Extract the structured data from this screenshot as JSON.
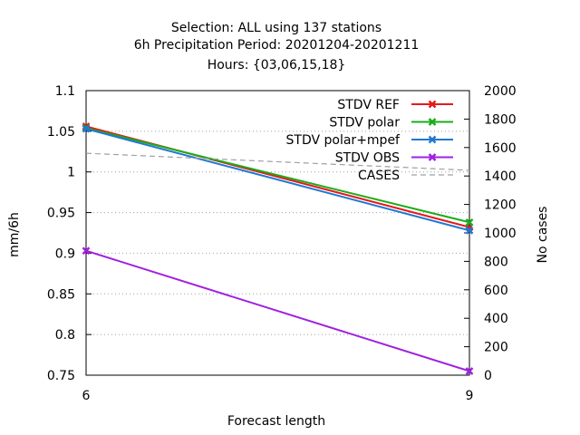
{
  "chart_data": {
    "type": "line",
    "title_lines": [
      "Selection: ALL using   137 stations",
      "6h Precipitation    Period: 20201204-20201211",
      "Hours: {03,06,15,18}"
    ],
    "xlabel": "Forecast length",
    "ylabel": "mm/6h",
    "y2label": "No cases",
    "x": [
      6,
      9
    ],
    "xlim": [
      6,
      9
    ],
    "x_ticks": [
      "6",
      "9"
    ],
    "ylim": [
      0.75,
      1.1
    ],
    "y_ticks": [
      "0.75",
      "0.8",
      "0.85",
      "0.9",
      "0.95",
      "1",
      "1.05",
      "1.1"
    ],
    "y2lim": [
      0,
      2000
    ],
    "y2_ticks": [
      "0",
      "200",
      "400",
      "600",
      "800",
      "1000",
      "1200",
      "1400",
      "1600",
      "1800",
      "2000"
    ],
    "grid": true,
    "legend_position": "top-right",
    "series": [
      {
        "name": "STDV REF",
        "values": [
          1.056,
          0.932
        ],
        "color": "#e41a1c",
        "axis": "left",
        "dashed": false,
        "marker": true
      },
      {
        "name": "STDV polar",
        "values": [
          1.054,
          0.938
        ],
        "color": "#1aad19",
        "axis": "left",
        "dashed": false,
        "marker": true
      },
      {
        "name": "STDV polar+mpef",
        "values": [
          1.053,
          0.928
        ],
        "color": "#1f78d4",
        "axis": "left",
        "dashed": false,
        "marker": true
      },
      {
        "name": "STDV OBS",
        "values": [
          0.903,
          0.755
        ],
        "color": "#a020e0",
        "axis": "left",
        "dashed": false,
        "marker": true
      },
      {
        "name": "CASES",
        "values": [
          1560,
          1440
        ],
        "color": "#a0a0a0",
        "axis": "right",
        "dashed": true,
        "marker": false
      }
    ]
  }
}
